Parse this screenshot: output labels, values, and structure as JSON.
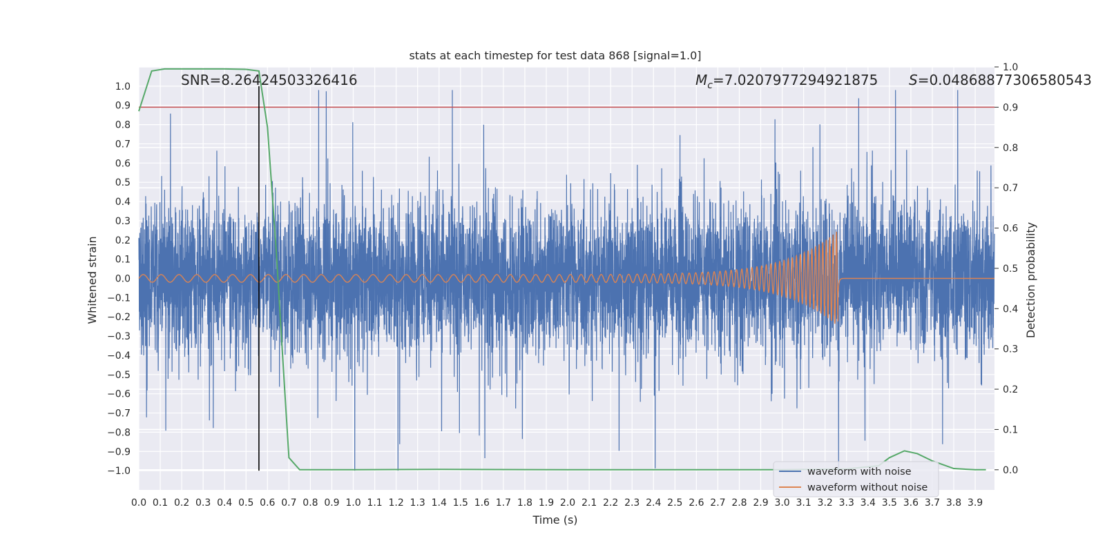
{
  "chart_data": {
    "type": "line",
    "title": "stats at each timestep for test data 868 [signal=1.0]",
    "xlabel": "Time (s)",
    "ylabel": "Whitened strain",
    "y2label": "Detection probability",
    "xlim": [
      0.0,
      3.99
    ],
    "ylim": [
      -1.1,
      1.1
    ],
    "y2lim": [
      -0.05,
      1.0
    ],
    "grid": true,
    "x_ticks": [
      "0.0",
      "0.1",
      "0.2",
      "0.3",
      "0.4",
      "0.5",
      "0.6",
      "0.7",
      "0.8",
      "0.9",
      "1.0",
      "1.1",
      "1.2",
      "1.3",
      "1.4",
      "1.5",
      "1.6",
      "1.7",
      "1.8",
      "1.9",
      "2.0",
      "2.1",
      "2.2",
      "2.3",
      "2.4",
      "2.5",
      "2.6",
      "2.7",
      "2.8",
      "2.9",
      "3.0",
      "3.1",
      "3.2",
      "3.3",
      "3.4",
      "3.5",
      "3.6",
      "3.7",
      "3.8",
      "3.9"
    ],
    "y_ticks": [
      "1.0",
      "0.9",
      "0.8",
      "0.7",
      "0.6",
      "0.5",
      "0.4",
      "0.3",
      "0.2",
      "0.1",
      "0.0",
      "−0.1",
      "−0.2",
      "−0.3",
      "−0.4",
      "−0.5",
      "−0.6",
      "−0.7",
      "−0.8",
      "−0.9",
      "−1.0"
    ],
    "y2_ticks": [
      "1.0",
      "0.9",
      "0.8",
      "0.7",
      "0.6",
      "0.5",
      "0.4",
      "0.3",
      "0.2",
      "0.1",
      "0.0"
    ],
    "annotations": {
      "snr": "SNR=8.26424503326416",
      "mc_symbol": "M",
      "mc_sub": "c",
      "mc_value": "=7.0207977294921875",
      "s_symbol": "S",
      "s_value": "=0.04868877306580543"
    },
    "legend": {
      "position": "lower-right",
      "entries": [
        "waveform with noise",
        "waveform without noise"
      ]
    },
    "colors": {
      "noise": "#4c72b0",
      "clean": "#dd8452",
      "probability": "#55a868",
      "threshold": "#c44e52",
      "marker": "#000000",
      "plot_bg": "#eaeaf2",
      "grid": "#ffffff"
    },
    "series": [
      {
        "name": "waveform with noise",
        "axis": "left",
        "description_values": {
          "t_start": 0.0,
          "t_end": 3.99,
          "amplitude_core": 0.4,
          "peak_max": 0.98,
          "peak_min": -1.0
        }
      },
      {
        "name": "waveform without noise",
        "axis": "left",
        "chirp": {
          "t_start": 0.0,
          "t_merger": 3.26,
          "t_end": 3.99,
          "amp_start": 0.02,
          "amp_peak": 0.25,
          "f_start": 12,
          "f_end": 65
        }
      },
      {
        "name": "detection probability",
        "axis": "right",
        "x": [
          0.0,
          0.06,
          0.12,
          0.2,
          0.3,
          0.4,
          0.5,
          0.56,
          0.6,
          0.64,
          0.68,
          0.7,
          0.75,
          0.8,
          1.0,
          1.4,
          2.0,
          2.5,
          3.0,
          3.3,
          3.45,
          3.5,
          3.57,
          3.63,
          3.7,
          3.8,
          3.9,
          3.95
        ],
        "y": [
          0.89,
          0.99,
          0.995,
          0.995,
          0.995,
          0.995,
          0.994,
          0.99,
          0.85,
          0.55,
          0.2,
          0.03,
          0.0,
          0.0,
          0.0,
          0.001,
          0.0,
          0.0,
          0.0,
          0.002,
          0.01,
          0.03,
          0.047,
          0.04,
          0.022,
          0.003,
          0.0,
          0.0
        ]
      }
    ],
    "threshold_y2": 0.9,
    "marker_x": 0.56
  }
}
